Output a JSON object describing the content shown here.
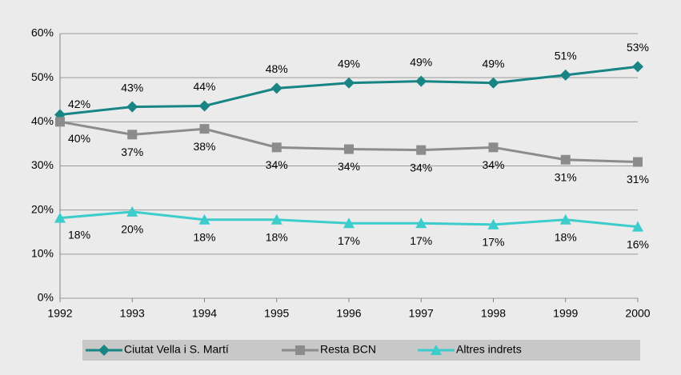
{
  "chart_data": {
    "type": "line",
    "categories": [
      "1992",
      "1993",
      "1994",
      "1995",
      "1996",
      "1997",
      "1998",
      "1999",
      "2000"
    ],
    "series": [
      {
        "name": "Ciutat Vella i S. Martí",
        "color": "#188484",
        "marker": "diamond",
        "values": [
          41.6,
          43.4,
          43.6,
          47.6,
          48.8,
          49.2,
          48.8,
          50.6,
          52.5
        ],
        "value_labels": [
          "42%",
          "43%",
          "44%",
          "48%",
          "49%",
          "49%",
          "49%",
          "51%",
          "53%"
        ]
      },
      {
        "name": "Resta BCN",
        "color": "#8c8c8c",
        "marker": "square",
        "values": [
          40.0,
          37.1,
          38.4,
          34.2,
          33.8,
          33.6,
          34.2,
          31.4,
          30.9
        ],
        "value_labels": [
          "40%",
          "37%",
          "38%",
          "34%",
          "34%",
          "34%",
          "34%",
          "31%",
          "31%"
        ]
      },
      {
        "name": "Altres indrets",
        "color": "#3ccccc",
        "marker": "triangle",
        "values": [
          18.2,
          19.6,
          17.8,
          17.8,
          17.0,
          17.0,
          16.7,
          17.8,
          16.2
        ],
        "value_labels": [
          "18%",
          "20%",
          "18%",
          "18%",
          "17%",
          "17%",
          "17%",
          "18%",
          "16%"
        ]
      }
    ],
    "ylim": [
      0,
      60
    ],
    "yticks": [
      {
        "value": 0,
        "label": "0%"
      },
      {
        "value": 10,
        "label": "10%"
      },
      {
        "value": 20,
        "label": "20%"
      },
      {
        "value": 30,
        "label": "30%"
      },
      {
        "value": 40,
        "label": "40%"
      },
      {
        "value": 50,
        "label": "50%"
      },
      {
        "value": 60,
        "label": "60%"
      }
    ],
    "grid": true,
    "legend": "bottom"
  }
}
